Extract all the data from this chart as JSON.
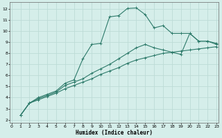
{
  "xlabel": "Humidex (Indice chaleur)",
  "bg_color": "#d5eeea",
  "grid_color": "#bddbd6",
  "line_color": "#2d7a6a",
  "x_ticks": [
    0,
    1,
    2,
    3,
    4,
    5,
    6,
    7,
    8,
    9,
    10,
    11,
    12,
    13,
    14,
    15,
    16,
    17,
    18,
    19,
    20,
    21,
    22,
    23
  ],
  "y_ticks": [
    2,
    3,
    4,
    5,
    6,
    7,
    8,
    9,
    10,
    11,
    12
  ],
  "xlim": [
    -0.2,
    23.2
  ],
  "ylim": [
    1.7,
    12.6
  ],
  "line1_x": [
    1,
    2,
    3,
    4,
    5,
    6,
    7,
    8,
    9,
    10,
    11,
    12,
    13,
    14,
    15,
    16,
    17,
    18,
    19,
    20,
    21,
    22,
    23
  ],
  "line1_y": [
    2.4,
    3.5,
    3.8,
    4.1,
    4.4,
    4.8,
    5.1,
    5.4,
    5.7,
    6.1,
    6.4,
    6.7,
    7.1,
    7.4,
    7.6,
    7.8,
    8.0,
    8.1,
    8.2,
    8.3,
    8.4,
    8.5,
    8.6
  ],
  "line2_x": [
    1,
    2,
    3,
    4,
    5,
    6,
    7,
    8,
    9,
    10,
    11,
    12,
    13,
    14,
    15,
    16,
    17,
    18,
    19,
    20,
    21,
    22,
    23
  ],
  "line2_y": [
    2.4,
    3.5,
    3.9,
    4.2,
    4.5,
    5.1,
    5.4,
    5.7,
    6.2,
    6.6,
    7.0,
    7.5,
    8.0,
    8.5,
    8.8,
    8.5,
    8.3,
    8.1,
    7.9,
    9.8,
    9.1,
    9.1,
    8.9
  ],
  "line3_x": [
    1,
    2,
    3,
    4,
    5,
    6,
    7,
    8,
    9,
    10,
    11,
    12,
    13,
    14,
    15,
    16,
    17,
    18,
    19,
    20,
    21,
    22,
    23
  ],
  "line3_y": [
    2.4,
    3.5,
    4.0,
    4.3,
    4.6,
    5.3,
    5.6,
    7.5,
    8.8,
    8.9,
    11.3,
    11.4,
    12.05,
    12.1,
    11.5,
    10.3,
    10.5,
    9.8,
    9.8,
    9.8,
    9.1,
    9.1,
    8.8
  ]
}
